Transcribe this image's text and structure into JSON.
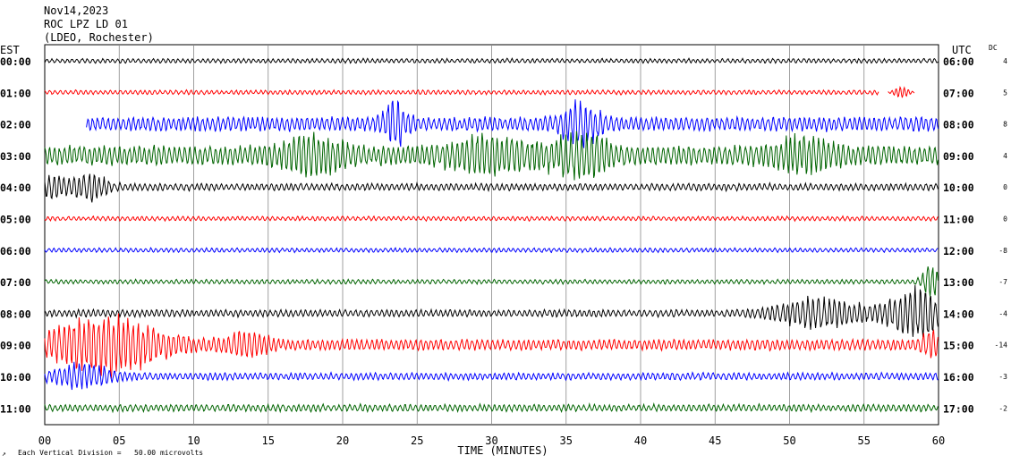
{
  "header": {
    "date": "Nov14,2023",
    "station": "ROC LPZ LD 01",
    "network": "(LDEO, Rochester)"
  },
  "chart_data": {
    "type": "line",
    "left_timezone": "EST",
    "right_timezone": "UTC",
    "dc_label": "DC",
    "xlabel": "TIME (MINUTES)",
    "footnote": "Each Vertical Division =   50.00 microvolts",
    "xlim": [
      0,
      60
    ],
    "x_ticks": [
      "00",
      "05",
      "10",
      "15",
      "20",
      "25",
      "30",
      "35",
      "40",
      "45",
      "50",
      "55",
      "60"
    ],
    "grid": true,
    "colors": [
      "#000000",
      "#ff0000",
      "#0000ff",
      "#006400"
    ],
    "traces": [
      {
        "est": "00:00",
        "utc": "06:00",
        "dc": "4",
        "color": "#000000",
        "amplitude": 2.5,
        "data_start": 0,
        "data_end": 60
      },
      {
        "est": "01:00",
        "utc": "07:00",
        "dc": "5",
        "color": "#ff0000",
        "amplitude": 2.5,
        "data_start": 0,
        "data_end": 56,
        "events": [
          {
            "t": 57.5,
            "dur": 0.6,
            "amp": 6
          }
        ]
      },
      {
        "est": "02:00",
        "utc": "08:00",
        "dc": "8",
        "color": "#0000ff",
        "amplitude": 8,
        "data_start": 2.8,
        "data_end": 60,
        "events": [
          {
            "t": 23.5,
            "dur": 0.8,
            "amp": 22
          },
          {
            "t": 36,
            "dur": 1.2,
            "amp": 22
          }
        ]
      },
      {
        "est": "03:00",
        "utc": "09:00",
        "dc": "4",
        "color": "#006400",
        "amplitude": 11,
        "data_start": 0,
        "data_end": 60,
        "events": [
          {
            "t": 18,
            "dur": 2,
            "amp": 18
          },
          {
            "t": 30,
            "dur": 3,
            "amp": 14
          },
          {
            "t": 36,
            "dur": 2,
            "amp": 18
          },
          {
            "t": 51,
            "dur": 2,
            "amp": 14
          }
        ]
      },
      {
        "est": "04:00",
        "utc": "10:00",
        "dc": "0",
        "color": "#000000",
        "amplitude": 4,
        "data_start": 0,
        "data_end": 60,
        "events": [
          {
            "t": 0.5,
            "dur": 1,
            "amp": 12
          },
          {
            "t": 3,
            "dur": 1.2,
            "amp": 14
          }
        ]
      },
      {
        "est": "05:00",
        "utc": "11:00",
        "dc": "0",
        "color": "#ff0000",
        "amplitude": 2.5,
        "data_start": 0,
        "data_end": 60
      },
      {
        "est": "06:00",
        "utc": "12:00",
        "dc": "-8",
        "color": "#0000ff",
        "amplitude": 2.5,
        "data_start": 0,
        "data_end": 60
      },
      {
        "est": "07:00",
        "utc": "13:00",
        "dc": "-7",
        "color": "#006400",
        "amplitude": 2.5,
        "data_start": 0,
        "data_end": 60,
        "events": [
          {
            "t": 59.5,
            "dur": 0.6,
            "amp": 20
          }
        ]
      },
      {
        "est": "08:00",
        "utc": "14:00",
        "dc": "-4",
        "color": "#000000",
        "amplitude": 4,
        "data_start": 0,
        "data_end": 60,
        "events": [
          {
            "t": 52,
            "dur": 3,
            "amp": 16
          },
          {
            "t": 58.5,
            "dur": 2,
            "amp": 26
          }
        ]
      },
      {
        "est": "09:00",
        "utc": "15:00",
        "dc": "-14",
        "color": "#ff0000",
        "amplitude": 6,
        "data_start": 0,
        "data_end": 60,
        "events": [
          {
            "t": 4,
            "dur": 4,
            "amp": 30
          },
          {
            "t": 13.5,
            "dur": 1.5,
            "amp": 12
          },
          {
            "t": 59.5,
            "dur": 0.6,
            "amp": 14
          }
        ]
      },
      {
        "est": "10:00",
        "utc": "16:00",
        "dc": "-3",
        "color": "#0000ff",
        "amplitude": 4,
        "data_start": 0,
        "data_end": 60,
        "events": [
          {
            "t": 2.5,
            "dur": 2,
            "amp": 12
          }
        ]
      },
      {
        "est": "11:00",
        "utc": "17:00",
        "dc": "-2",
        "color": "#006400",
        "amplitude": 4,
        "data_start": 0,
        "data_end": 60
      }
    ]
  }
}
